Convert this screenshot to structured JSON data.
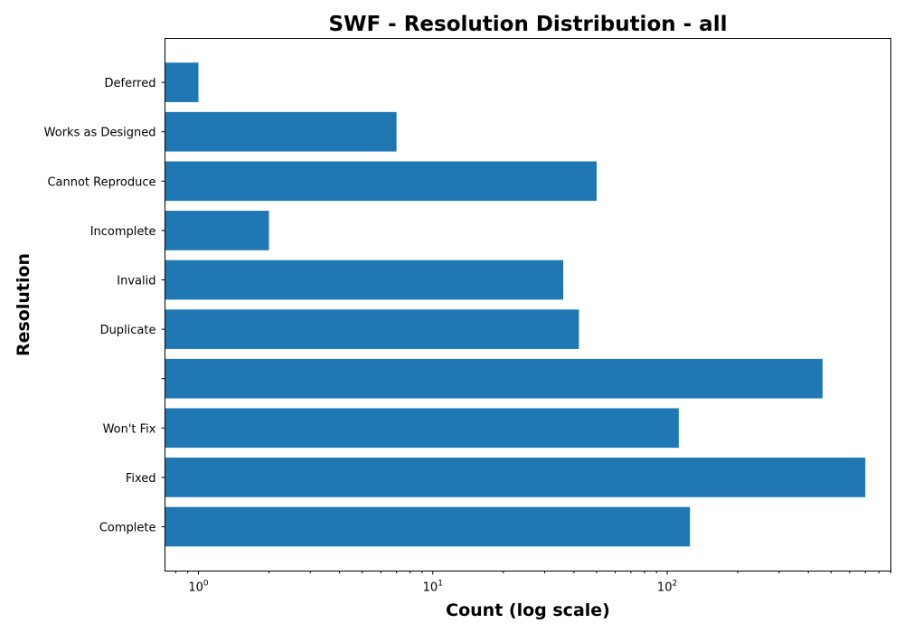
{
  "chart_data": {
    "type": "bar",
    "orientation": "horizontal",
    "title": "SWF - Resolution Distribution - all",
    "xlabel": "Count (log scale)",
    "ylabel": "Resolution",
    "x_scale": "log",
    "xlim": [
      0.72,
      900
    ],
    "categories": [
      "Complete",
      "Fixed",
      "Won't Fix",
      "",
      "Duplicate",
      "Invalid",
      "Incomplete",
      "Cannot Reproduce",
      "Works as Designed",
      "Deferred"
    ],
    "values": [
      125,
      700,
      112,
      460,
      42,
      36,
      2,
      50,
      7,
      1
    ],
    "x_ticks": [
      {
        "value": 1,
        "base": "10",
        "exp": "0"
      },
      {
        "value": 10,
        "base": "10",
        "exp": "1"
      },
      {
        "value": 100,
        "base": "10",
        "exp": "2"
      }
    ],
    "bar_color": "#1f77b4",
    "grid": false,
    "legend": "none"
  }
}
